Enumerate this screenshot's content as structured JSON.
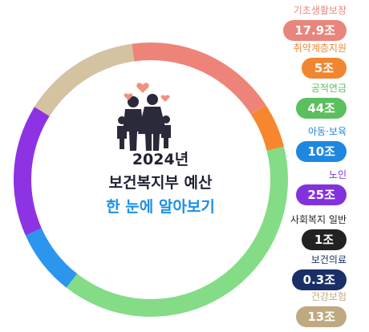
{
  "chart_data": {
    "type": "donut",
    "title_lines": [
      "2024년",
      "보건복지부 예산",
      "한 눈에 알아보기"
    ],
    "unit": "조",
    "series": [
      {
        "label": "기초생활보장",
        "value_text": "17.9조",
        "value": 17.9,
        "color": "#ee8479",
        "label_color": "#e8867d"
      },
      {
        "label": "취약계층지원",
        "value_text": "5조",
        "value": 5,
        "color": "#f6872e",
        "label_color": "#f08630"
      },
      {
        "label": "공적연금",
        "value_text": "44조",
        "value": 44,
        "color": "#84dc86",
        "label_color": "#5bbf5d"
      },
      {
        "label": "아동·보육",
        "value_text": "10조",
        "value": 10,
        "color": "#2c95ee",
        "label_color": "#1e87e0"
      },
      {
        "label": "노인",
        "value_text": "25조",
        "value": 25,
        "color": "#8d33e4",
        "label_color": "#8232dc"
      },
      {
        "label": "사회복지 일반",
        "value_text": "1조",
        "value": 1,
        "color": "#221a18",
        "label_color": "#222222"
      },
      {
        "label": "보건의료",
        "value_text": "0.3조",
        "value": 0.3,
        "color": "#1a2f66",
        "label_color": "#1a2f66"
      },
      {
        "label": "건강보험",
        "value_text": "13조",
        "value": 13,
        "color": "#d4c3a1",
        "label_color": "#bfa981"
      }
    ]
  }
}
